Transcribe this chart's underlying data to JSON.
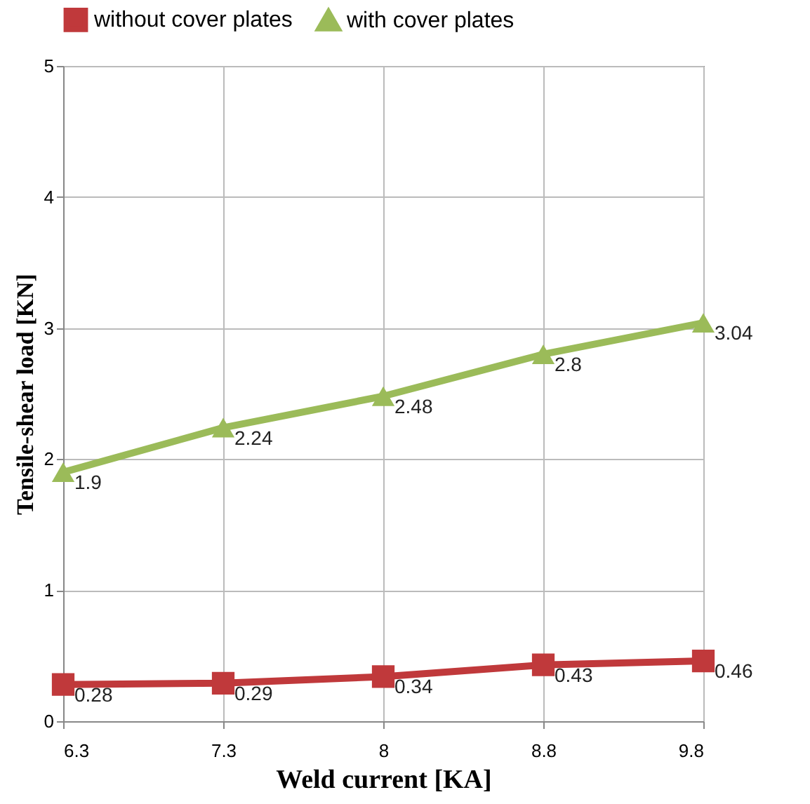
{
  "chart_data": {
    "type": "line",
    "xlabel": "Weld current [KA]",
    "ylabel": "Tensile-shear load [KN]",
    "categories": [
      "6.3",
      "7.3",
      "8",
      "8.8",
      "9.8"
    ],
    "series": [
      {
        "name": "without cover plates",
        "color": "#c0393b",
        "marker": "square",
        "values": [
          0.28,
          0.29,
          0.34,
          0.43,
          0.46
        ]
      },
      {
        "name": "with cover plates",
        "color": "#9bbb59",
        "marker": "triangle",
        "values": [
          1.9,
          2.24,
          2.48,
          2.8,
          3.04
        ]
      }
    ],
    "ylim": [
      0,
      5
    ],
    "yticks": [
      0,
      1,
      2,
      3,
      4,
      5
    ],
    "grid": true,
    "legend": "top",
    "data_labels": true,
    "line_style": "solid"
  }
}
